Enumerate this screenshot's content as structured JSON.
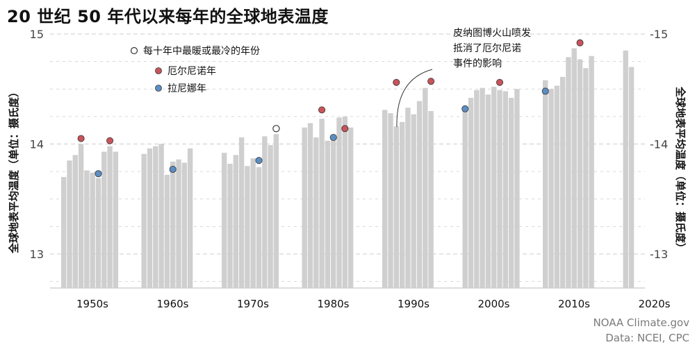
{
  "title": "20 世纪 50 年代以来每年的全球地表温度",
  "ylabel_left": "全球地表平均温度（单位：摄氏度）",
  "ylabel_right": "全球地表平均温度（单位：摄氏度）",
  "legend": {
    "record_label": "每十年中最暖或最冷的年份",
    "el_nino_label": "厄尔尼诺年",
    "la_nina_label": "拉尼娜年"
  },
  "annotation": [
    "皮纳图博火山喷发",
    "抵消了厄尔尼诺",
    "事件的影响"
  ],
  "credit": [
    "NOAA Climate.gov",
    "Data: NCEI, CPC"
  ],
  "colors": {
    "bar": "#cfcfcf",
    "el_nino": "#c8545a",
    "la_nina": "#5b8fc4",
    "record": "#ffffff",
    "grid": "#cccccc"
  },
  "chart_data": {
    "type": "bar",
    "title": "20 世纪 50 年代以来每年的全球地表温度",
    "ylabel": "全球地表平均温度（单位：摄氏度）",
    "ylim": [
      12.7,
      15.2
    ],
    "yticks": [
      13,
      14,
      15
    ],
    "grid": "horizontal dashed",
    "legend_position": "top-left",
    "decade_labels": [
      "1950s",
      "1960s",
      "1970s",
      "1980s",
      "1990s",
      "2000s",
      "2010s",
      "2020s"
    ],
    "x": [
      1950,
      1951,
      1952,
      1953,
      1954,
      1955,
      1956,
      1957,
      1958,
      1959,
      1960,
      1961,
      1962,
      1963,
      1964,
      1965,
      1966,
      1967,
      1968,
      1969,
      1970,
      1971,
      1972,
      1973,
      1974,
      1975,
      1976,
      1977,
      1978,
      1979,
      1980,
      1981,
      1982,
      1983,
      1984,
      1985,
      1986,
      1987,
      1988,
      1989,
      1990,
      1991,
      1992,
      1993,
      1994,
      1995,
      1996,
      1997,
      1998,
      1999,
      2000,
      2001,
      2002,
      2003,
      2004,
      2005,
      2006,
      2007,
      2008,
      2009,
      2010,
      2011,
      2012,
      2013,
      2014,
      2015,
      2016,
      2017,
      2018,
      2019,
      2020,
      2021
    ],
    "values": [
      13.7,
      13.85,
      13.9,
      14.0,
      13.76,
      13.74,
      13.69,
      13.93,
      13.98,
      13.93,
      13.91,
      13.96,
      13.98,
      14.0,
      13.72,
      13.84,
      13.86,
      13.83,
      13.96,
      null,
      13.92,
      13.82,
      13.9,
      14.06,
      13.8,
      13.87,
      13.79,
      14.07,
      13.99,
      14.09,
      14.15,
      14.19,
      14.06,
      14.23,
      14.03,
      14.08,
      14.24,
      14.25,
      14.15,
      null,
      14.31,
      14.28,
      14.16,
      14.2,
      14.33,
      14.27,
      14.39,
      14.51,
      14.3,
      null,
      14.31,
      14.42,
      14.49,
      14.51,
      14.45,
      14.52,
      14.49,
      14.48,
      14.42,
      14.5,
      14.58,
      14.5,
      14.53,
      14.61,
      14.79,
      14.87,
      14.77,
      14.69,
      14.8,
      null,
      14.85,
      14.7
    ],
    "el_nino_years": [
      1953,
      1958,
      1983,
      1987,
      1992,
      1998,
      2006,
      2016
    ],
    "la_nina_years": [
      1956,
      1965,
      1976,
      1985,
      2000,
      2010
    ],
    "record_years": [
      1979
    ],
    "marker_values": {
      "1953": 14.05,
      "1958": 14.03,
      "1983": 14.31,
      "1987": 14.14,
      "1992": 14.56,
      "1998": 14.57,
      "2006": 14.56,
      "2016": 14.92,
      "1956": 13.73,
      "1965": 13.77,
      "1976": 13.85,
      "1985": 14.06,
      "2000": 14.32,
      "2010": 14.48,
      "1979": 14.14
    }
  }
}
